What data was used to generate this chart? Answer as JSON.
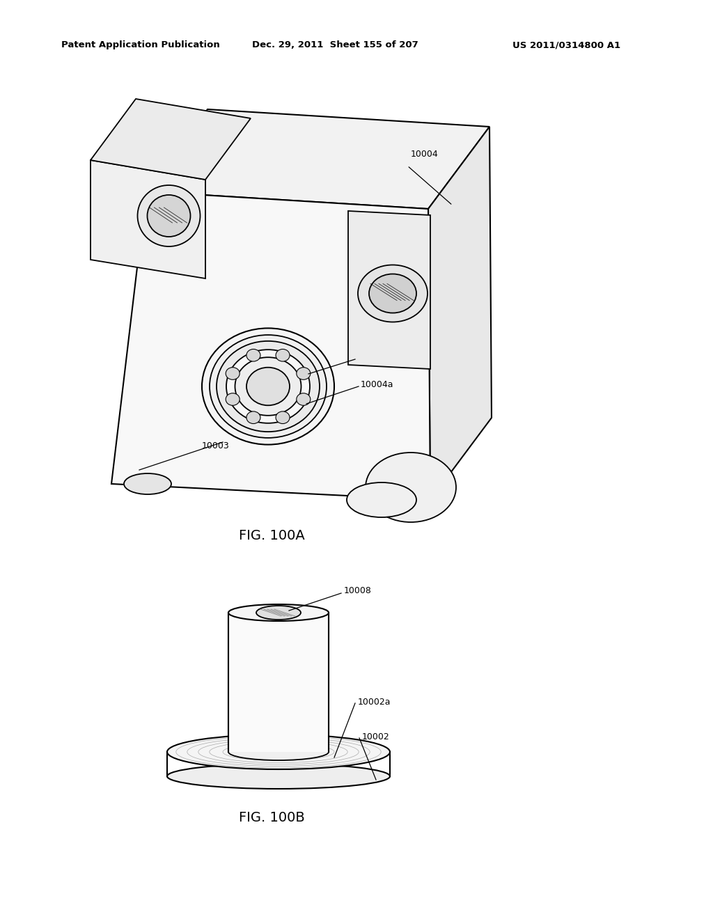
{
  "background_color": "#ffffff",
  "header_left": "Patent Application Publication",
  "header_center": "Dec. 29, 2011  Sheet 155 of 207",
  "header_right": "US 2011/0314800 A1",
  "fig_a_label": "FIG. 100A",
  "fig_b_label": "FIG. 100B"
}
